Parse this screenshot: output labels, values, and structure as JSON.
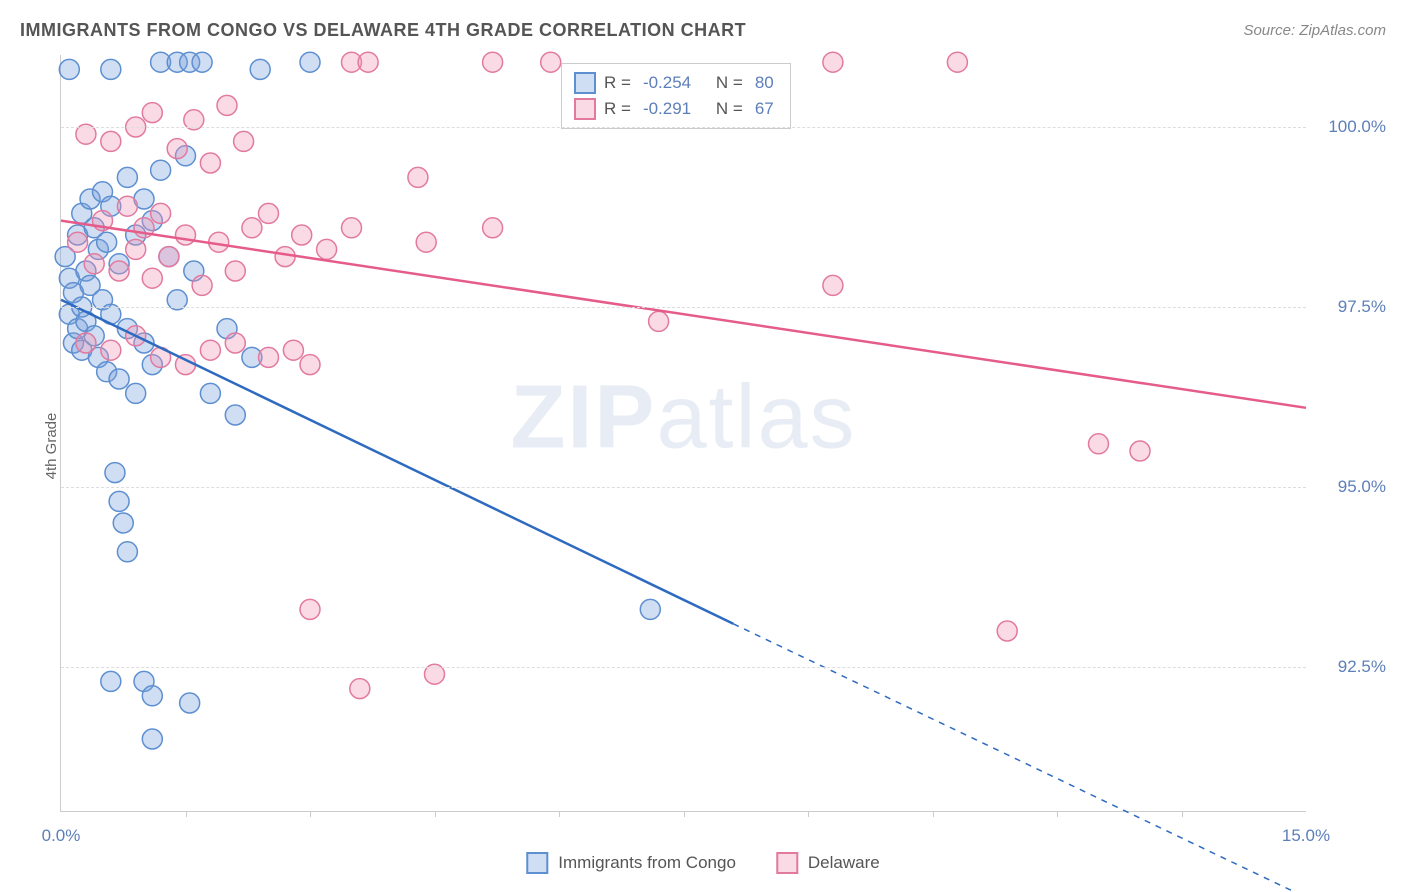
{
  "title": "IMMIGRANTS FROM CONGO VS DELAWARE 4TH GRADE CORRELATION CHART",
  "source": "Source: ZipAtlas.com",
  "watermark_a": "ZIP",
  "watermark_b": "atlas",
  "y_axis_label": "4th Grade",
  "chart": {
    "type": "scatter",
    "xlim": [
      0.0,
      15.0
    ],
    "ylim": [
      90.5,
      101.0
    ],
    "x_ticks": [
      0.0,
      15.0
    ],
    "x_tick_labels": [
      "0.0%",
      "15.0%"
    ],
    "x_minor_ticks": [
      1.5,
      3.0,
      4.5,
      6.0,
      7.5,
      9.0,
      10.5,
      12.0,
      13.5
    ],
    "y_ticks": [
      92.5,
      95.0,
      97.5,
      100.0
    ],
    "y_tick_labels": [
      "92.5%",
      "95.0%",
      "97.5%",
      "100.0%"
    ],
    "background_color": "#ffffff",
    "grid_color": "#dddddd",
    "grid_dash": "4,4",
    "marker_radius": 10,
    "marker_stroke_width": 1.5,
    "line_width": 2.5,
    "series": [
      {
        "name": "Immigrants from Congo",
        "color_fill": "rgba(120,160,220,0.35)",
        "color_stroke": "#5d8fd1",
        "line_color": "#2e6bc0",
        "R": "-0.254",
        "N": "80",
        "trend_start": [
          0.0,
          97.6
        ],
        "trend_end_solid": [
          8.1,
          93.1
        ],
        "trend_end_dash": [
          15.0,
          89.3
        ],
        "points": [
          [
            0.1,
            100.8
          ],
          [
            0.6,
            100.8
          ],
          [
            1.2,
            100.9
          ],
          [
            1.4,
            100.9
          ],
          [
            1.55,
            100.9
          ],
          [
            1.7,
            100.9
          ],
          [
            2.4,
            100.8
          ],
          [
            3.0,
            100.9
          ],
          [
            0.05,
            98.2
          ],
          [
            0.1,
            97.9
          ],
          [
            0.1,
            97.4
          ],
          [
            0.15,
            97.0
          ],
          [
            0.15,
            97.7
          ],
          [
            0.2,
            98.5
          ],
          [
            0.2,
            97.2
          ],
          [
            0.25,
            98.8
          ],
          [
            0.25,
            97.5
          ],
          [
            0.25,
            96.9
          ],
          [
            0.3,
            98.0
          ],
          [
            0.3,
            97.3
          ],
          [
            0.35,
            99.0
          ],
          [
            0.35,
            97.8
          ],
          [
            0.4,
            98.6
          ],
          [
            0.4,
            97.1
          ],
          [
            0.45,
            98.3
          ],
          [
            0.45,
            96.8
          ],
          [
            0.5,
            99.1
          ],
          [
            0.5,
            97.6
          ],
          [
            0.55,
            98.4
          ],
          [
            0.55,
            96.6
          ],
          [
            0.6,
            98.9
          ],
          [
            0.6,
            97.4
          ],
          [
            0.7,
            98.1
          ],
          [
            0.7,
            96.5
          ],
          [
            0.8,
            99.3
          ],
          [
            0.8,
            97.2
          ],
          [
            0.9,
            98.5
          ],
          [
            0.9,
            96.3
          ],
          [
            1.0,
            99.0
          ],
          [
            1.0,
            97.0
          ],
          [
            1.1,
            98.7
          ],
          [
            1.1,
            96.7
          ],
          [
            1.2,
            99.4
          ],
          [
            1.3,
            98.2
          ],
          [
            1.4,
            97.6
          ],
          [
            1.5,
            99.6
          ],
          [
            1.6,
            98.0
          ],
          [
            1.8,
            96.3
          ],
          [
            2.0,
            97.2
          ],
          [
            2.1,
            96.0
          ],
          [
            2.3,
            96.8
          ],
          [
            0.65,
            95.2
          ],
          [
            0.7,
            94.8
          ],
          [
            0.75,
            94.5
          ],
          [
            0.8,
            94.1
          ],
          [
            0.6,
            92.3
          ],
          [
            1.0,
            92.3
          ],
          [
            1.1,
            92.1
          ],
          [
            1.55,
            92.0
          ],
          [
            1.1,
            91.5
          ],
          [
            7.1,
            93.3
          ]
        ]
      },
      {
        "name": "Delaware",
        "color_fill": "rgba(240,150,180,0.35)",
        "color_stroke": "#e27aa0",
        "line_color": "#e55b8a",
        "R": "-0.291",
        "N": "67",
        "trend_start": [
          0.0,
          98.7
        ],
        "trend_end_solid": [
          15.0,
          96.1
        ],
        "trend_end_dash": [
          15.0,
          96.1
        ],
        "points": [
          [
            3.5,
            100.9
          ],
          [
            3.7,
            100.9
          ],
          [
            5.2,
            100.9
          ],
          [
            5.9,
            100.9
          ],
          [
            9.3,
            100.9
          ],
          [
            10.8,
            100.9
          ],
          [
            0.3,
            99.9
          ],
          [
            0.6,
            99.8
          ],
          [
            0.9,
            100.0
          ],
          [
            1.1,
            100.2
          ],
          [
            1.4,
            99.7
          ],
          [
            1.6,
            100.1
          ],
          [
            1.8,
            99.5
          ],
          [
            2.0,
            100.3
          ],
          [
            2.2,
            99.8
          ],
          [
            0.2,
            98.4
          ],
          [
            0.4,
            98.1
          ],
          [
            0.5,
            98.7
          ],
          [
            0.7,
            98.0
          ],
          [
            0.8,
            98.9
          ],
          [
            0.9,
            98.3
          ],
          [
            1.0,
            98.6
          ],
          [
            1.1,
            97.9
          ],
          [
            1.2,
            98.8
          ],
          [
            1.3,
            98.2
          ],
          [
            1.5,
            98.5
          ],
          [
            1.7,
            97.8
          ],
          [
            1.9,
            98.4
          ],
          [
            2.1,
            98.0
          ],
          [
            2.3,
            98.6
          ],
          [
            2.5,
            98.8
          ],
          [
            2.7,
            98.2
          ],
          [
            2.9,
            98.5
          ],
          [
            3.2,
            98.3
          ],
          [
            3.5,
            98.6
          ],
          [
            4.3,
            99.3
          ],
          [
            4.4,
            98.4
          ],
          [
            0.3,
            97.0
          ],
          [
            0.6,
            96.9
          ],
          [
            0.9,
            97.1
          ],
          [
            1.2,
            96.8
          ],
          [
            1.5,
            96.7
          ],
          [
            1.8,
            96.9
          ],
          [
            2.1,
            97.0
          ],
          [
            2.5,
            96.8
          ],
          [
            2.8,
            96.9
          ],
          [
            3.0,
            96.7
          ],
          [
            5.2,
            98.6
          ],
          [
            7.2,
            97.3
          ],
          [
            9.3,
            97.8
          ],
          [
            3.0,
            93.3
          ],
          [
            3.6,
            92.2
          ],
          [
            4.5,
            92.4
          ],
          [
            11.4,
            93.0
          ],
          [
            12.5,
            95.6
          ],
          [
            13.0,
            95.5
          ]
        ]
      }
    ],
    "legend_box": {
      "rows": [
        {
          "swatch_fill": "rgba(120,160,220,0.35)",
          "swatch_stroke": "#5d8fd1",
          "R_label": "R =",
          "N_label": "N ="
        },
        {
          "swatch_fill": "rgba(240,150,180,0.35)",
          "swatch_stroke": "#e27aa0",
          "R_label": "R =",
          "N_label": "N ="
        }
      ]
    },
    "bottom_legend": [
      {
        "swatch_fill": "rgba(120,160,220,0.35)",
        "swatch_stroke": "#5d8fd1"
      },
      {
        "swatch_fill": "rgba(240,150,180,0.35)",
        "swatch_stroke": "#e27aa0"
      }
    ]
  }
}
